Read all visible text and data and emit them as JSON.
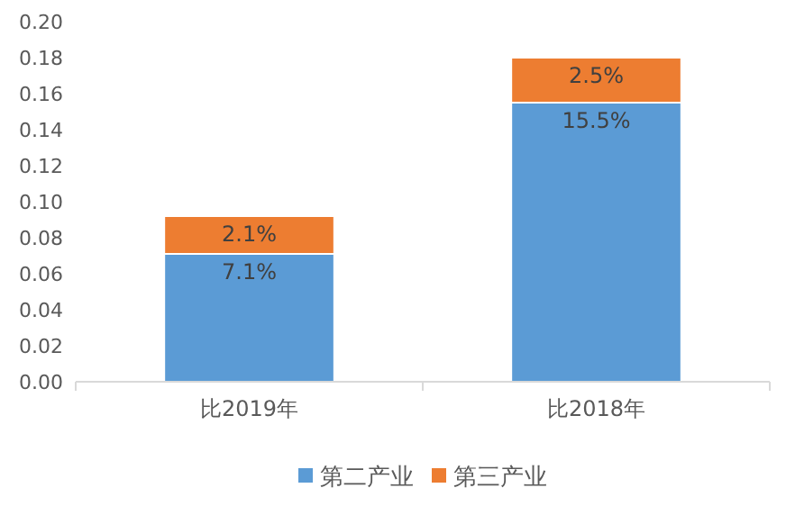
{
  "chart_data": {
    "type": "bar",
    "stacked": true,
    "categories": [
      "比2019年",
      "比2018年"
    ],
    "series": [
      {
        "name": "第二产业",
        "color": "#5b9bd5",
        "values": [
          0.071,
          0.155
        ],
        "value_labels": [
          "7.1%",
          "15.5%"
        ]
      },
      {
        "name": "第三产业",
        "color": "#ed7d31",
        "values": [
          0.021,
          0.025
        ],
        "value_labels": [
          "2.1%",
          "2.5%"
        ]
      }
    ],
    "ylim": [
      0,
      0.2
    ],
    "yticks": [
      {
        "value": 0,
        "label": "0.00"
      },
      {
        "value": 0.02,
        "label": "0.02"
      },
      {
        "value": 0.04,
        "label": "0.04"
      },
      {
        "value": 0.06,
        "label": "0.06"
      },
      {
        "value": 0.08,
        "label": "0.08"
      },
      {
        "value": 0.1,
        "label": "0.10"
      },
      {
        "value": 0.12,
        "label": "0.12"
      },
      {
        "value": 0.14,
        "label": "0.14"
      },
      {
        "value": 0.16,
        "label": "0.16"
      },
      {
        "value": 0.18,
        "label": "0.18"
      },
      {
        "value": 0.2,
        "label": "0.20"
      }
    ],
    "legend": "bottom"
  }
}
